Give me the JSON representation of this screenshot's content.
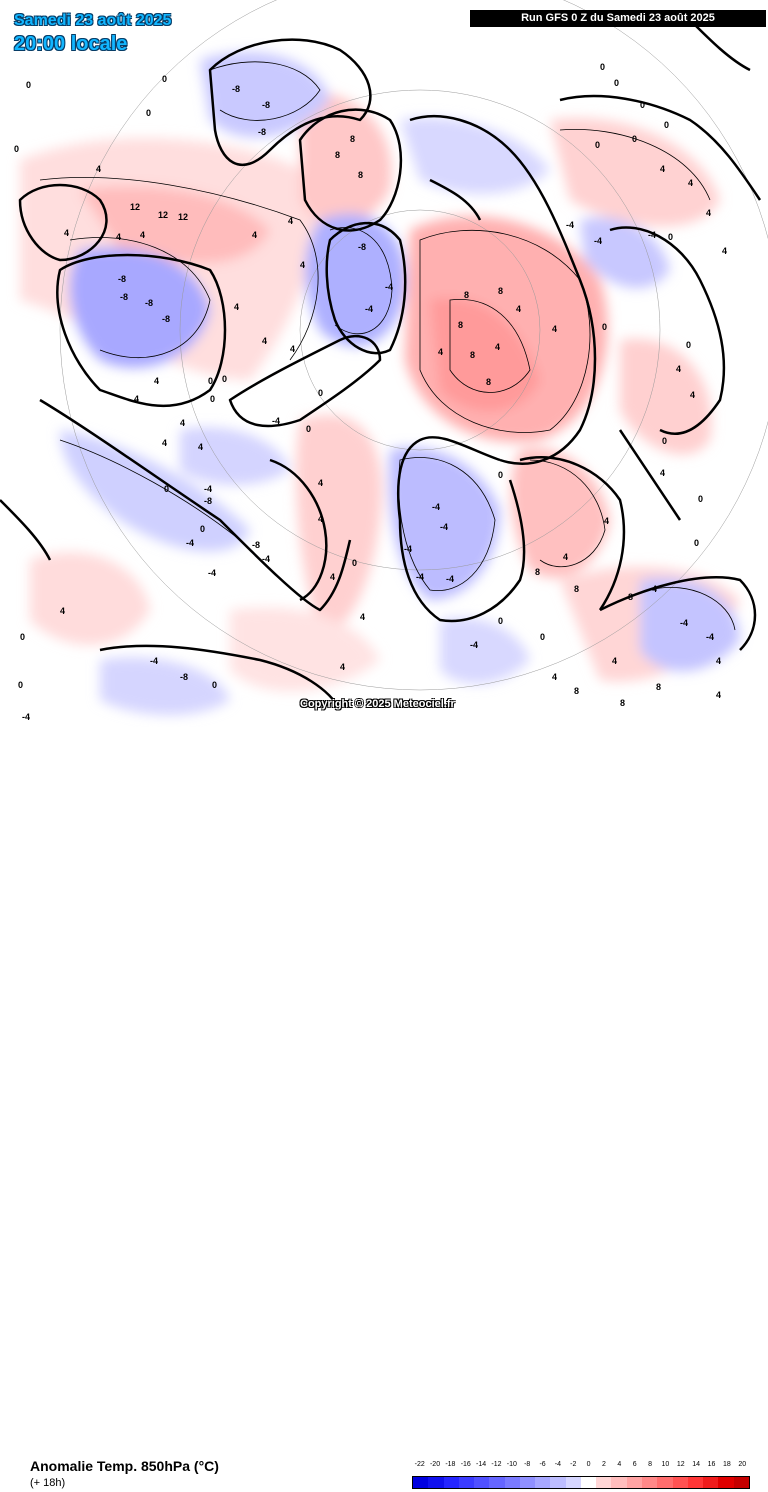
{
  "header": {
    "date": "Samedi 23 août 2025",
    "time": "20:00 locale",
    "run": "Run GFS 0 Z du Samedi 23 août 2025"
  },
  "map": {
    "copyright": "Copyright © 2025 Meteociel.fr",
    "contour_labels": [
      "-8",
      "-4",
      "0",
      "4",
      "8",
      "12"
    ]
  },
  "footer": {
    "parameter": "Anomalie Temp. 850hPa (°C)",
    "lead": "(+ 18h)"
  },
  "legend": {
    "ticks": [
      "-22",
      "-20",
      "-18",
      "-16",
      "-14",
      "-12",
      "-10",
      "-8",
      "-6",
      "-4",
      "-2",
      "0",
      "2",
      "4",
      "6",
      "8",
      "10",
      "12",
      "14",
      "16",
      "18",
      "20"
    ],
    "colors": [
      "#0000e0",
      "#1010ee",
      "#2525ff",
      "#3b3bff",
      "#5050ff",
      "#6565ff",
      "#7a7aff",
      "#9090ff",
      "#a7a7ff",
      "#bdbdff",
      "#d6d6ff",
      "#ffffff",
      "#ffd6d6",
      "#ffbdbd",
      "#ffa3a3",
      "#ff8888",
      "#ff6d6d",
      "#ff5252",
      "#ff3636",
      "#f01c1c",
      "#e00000",
      "#c40000"
    ]
  }
}
